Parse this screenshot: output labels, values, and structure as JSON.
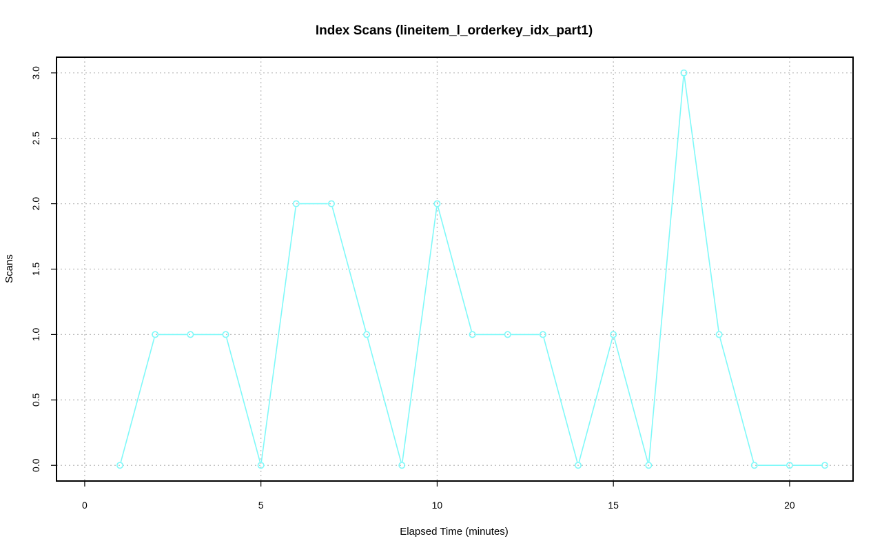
{
  "chart_data": {
    "type": "line",
    "title": "Index Scans (lineitem_l_orderkey_idx_part1)",
    "xlabel": "Elapsed Time (minutes)",
    "ylabel": "Scans",
    "xlim": [
      -0.8,
      21.8
    ],
    "ylim": [
      -0.12,
      3.12
    ],
    "xticks": [
      0,
      5,
      10,
      15,
      20
    ],
    "yticks": [
      0.0,
      0.5,
      1.0,
      1.5,
      2.0,
      2.5,
      3.0
    ],
    "xtick_labels": [
      "0",
      "5",
      "10",
      "15",
      "20"
    ],
    "ytick_labels": [
      "0.0",
      "0.5",
      "1.0",
      "1.5",
      "2.0",
      "2.5",
      "3.0"
    ],
    "grid": true,
    "series": [
      {
        "color": "#7ff9f9",
        "marker": "open-circle",
        "x": [
          1,
          2,
          3,
          4,
          5,
          6,
          7,
          8,
          9,
          10,
          11,
          12,
          13,
          14,
          15,
          16,
          17,
          18,
          19,
          20,
          21
        ],
        "y": [
          0,
          1,
          1,
          1,
          0,
          2,
          2,
          1,
          0,
          2,
          1,
          1,
          1,
          0,
          1,
          0,
          3,
          1,
          0,
          0,
          0
        ]
      }
    ]
  }
}
